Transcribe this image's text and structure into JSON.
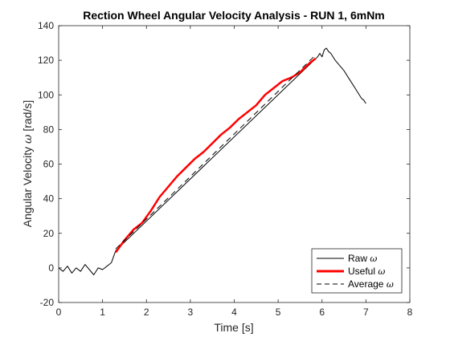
{
  "chart_data": {
    "type": "line",
    "title": "Rection Wheel Angular Velocity Analysis - RUN 1, 6mNm",
    "xlabel": "Time [s]",
    "ylabel_prefix": "Angular Velocity ",
    "ylabel_symbol": "ω",
    "ylabel_suffix": " [rad/s]",
    "xlim": [
      0,
      8
    ],
    "ylim": [
      -20,
      140
    ],
    "xticks": [
      "0",
      "1",
      "2",
      "3",
      "4",
      "5",
      "6",
      "7",
      "8"
    ],
    "yticks": [
      "-20",
      "0",
      "20",
      "40",
      "60",
      "80",
      "100",
      "120",
      "140"
    ],
    "grid": false,
    "legend_position": "bottom-right",
    "series": [
      {
        "name": "Raw",
        "symbol": "ω",
        "color": "#000000",
        "style": "solid",
        "x": [
          0,
          0.1,
          0.2,
          0.3,
          0.4,
          0.5,
          0.6,
          0.7,
          0.8,
          0.9,
          1.0,
          1.05,
          1.1,
          1.15,
          1.2,
          1.3,
          5.9,
          5.95,
          6.0,
          6.05,
          6.1,
          6.15,
          6.2,
          6.3,
          6.4,
          6.5,
          6.6,
          6.7,
          6.8,
          6.9,
          6.95,
          7.0
        ],
        "y": [
          0,
          -2,
          1,
          -3,
          0,
          -2,
          2,
          -1,
          -4,
          0,
          -1,
          0,
          1,
          2,
          3,
          10,
          122,
          124,
          122,
          126,
          127,
          125,
          124,
          120,
          117,
          114,
          110,
          106,
          102,
          98,
          97,
          95
        ]
      },
      {
        "name": "Useful",
        "symbol": "ω",
        "color": "#ff0000",
        "style": "solid",
        "x": [
          1.3,
          1.5,
          1.7,
          1.9,
          2.1,
          2.3,
          2.5,
          2.7,
          2.9,
          3.1,
          3.3,
          3.5,
          3.7,
          3.9,
          4.1,
          4.3,
          4.5,
          4.7,
          4.9,
          5.1,
          5.3,
          5.5,
          5.7,
          5.85
        ],
        "y": [
          9,
          16,
          22,
          26,
          33,
          41,
          47,
          53,
          58,
          63,
          67,
          72,
          77,
          81,
          86,
          90,
          94,
          100,
          104,
          108,
          110,
          113,
          118,
          121
        ]
      },
      {
        "name": "Average",
        "symbol": "ω",
        "color": "#000000",
        "style": "dashed",
        "x": [
          1.3,
          5.85
        ],
        "y": [
          11,
          123
        ]
      }
    ]
  }
}
